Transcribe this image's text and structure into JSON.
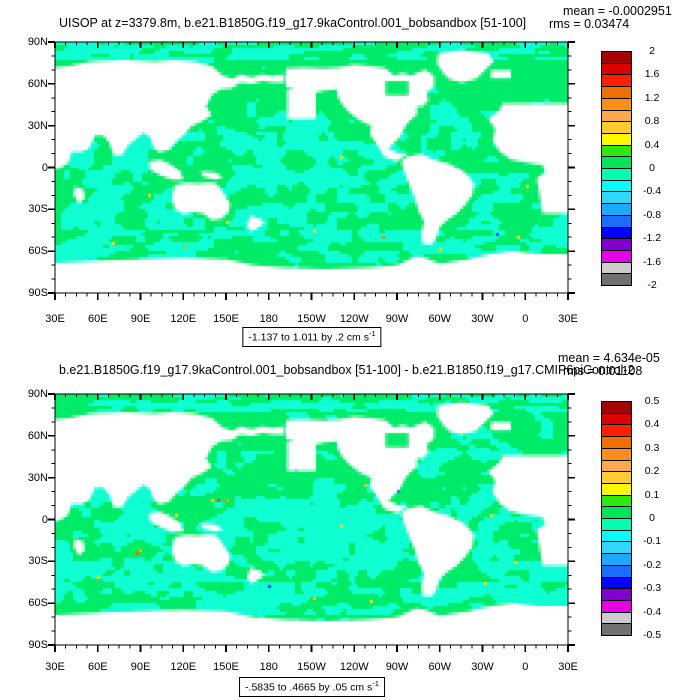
{
  "figure_background": "#ffffff",
  "panels": [
    {
      "title": "UISOP at z=3379.8m, b.e21.B1850G.f19_g17.9kaControl.001_bobsandbox [51-100]",
      "mean_label": "mean = -0.0002951",
      "rms_label": "rms = 0.03474",
      "range_caption_text": "-1.137 to 1.011 by .2 cm s",
      "range_caption_sup": "-1",
      "colorbar_labels": [
        "2",
        "1.6",
        "1.2",
        "0.8",
        "0.4",
        "0",
        "-0.4",
        "-0.8",
        "-1.2",
        "-1.6",
        "-2"
      ]
    },
    {
      "title": "b.e21.B1850G.f19_g17.9kaControl.001_bobsandbox [51-100] - b.e21.B1850.f19_g17.CMIP6piControl-2",
      "mean_label": "mean = 4.634e-05",
      "rms_label": "rms = 0.01108",
      "range_caption_text": "-.5835 to .4665 by .05 cm s",
      "range_caption_sup": "-1",
      "colorbar_labels": [
        "0.5",
        "0.4",
        "0.3",
        "0.2",
        "0.1",
        "0",
        "-0.1",
        "-0.2",
        "-0.3",
        "-0.4",
        "-0.5"
      ]
    }
  ],
  "axes": {
    "lat_labels": [
      "90N",
      "60N",
      "30N",
      "0",
      "30S",
      "60S",
      "90S"
    ],
    "lon_labels": [
      "30E",
      "60E",
      "90E",
      "120E",
      "150E",
      "180",
      "150W",
      "120W",
      "90W",
      "60W",
      "30W",
      "0",
      "30E"
    ]
  },
  "colors": {
    "palette_top_to_bottom": [
      "#A50000",
      "#DD0000",
      "#FF2000",
      "#EE7000",
      "#FF8E1E",
      "#FFA94F",
      "#FFCC33",
      "#FFF800",
      "#2FE80F",
      "#00E35A",
      "#00FFB0",
      "#00FFFF",
      "#33D6FF",
      "#1FA8FF",
      "#1B6EFF",
      "#0000FF",
      "#8000D0",
      "#E600E6",
      "#CCCCCC",
      "#707070"
    ],
    "ocean_fill": "#00EB68",
    "anomaly_fill": "#0FFFD2",
    "land_fill": "#FFFFFF"
  },
  "chart_data": [
    {
      "type": "heatmap",
      "title": "UISOP at z=3379.8m, b.e21.B1850G.f19_g17.9kaControl.001_bobsandbox [51-100]",
      "variable": "UISOP",
      "level": "z=3379.8m",
      "mean": -0.0002951,
      "rms": 0.03474,
      "data_min": -1.137,
      "data_max": 1.011,
      "contour_interval": 0.2,
      "units": "cm s-1",
      "colorbar_ticks": [
        2,
        1.6,
        1.2,
        0.8,
        0.4,
        0,
        -0.4,
        -0.8,
        -1.2,
        -1.6,
        -2
      ],
      "lon_ticks": [
        "30E",
        "60E",
        "90E",
        "120E",
        "150E",
        "180",
        "150W",
        "120W",
        "90W",
        "60W",
        "30W",
        "0",
        "30E"
      ],
      "lat_ticks": [
        "90N",
        "60N",
        "30N",
        "0",
        "30S",
        "60S",
        "90S"
      ]
    },
    {
      "type": "heatmap",
      "title": "b.e21.B1850G.f19_g17.9kaControl.001_bobsandbox [51-100] - b.e21.B1850.f19_g17.CMIP6piControl-2",
      "mean": 4.634e-05,
      "rms": 0.01108,
      "data_min": -0.5835,
      "data_max": 0.4665,
      "contour_interval": 0.05,
      "units": "cm s-1",
      "colorbar_ticks": [
        0.5,
        0.4,
        0.3,
        0.2,
        0.1,
        0,
        -0.1,
        -0.2,
        -0.3,
        -0.4,
        -0.5
      ],
      "lon_ticks": [
        "30E",
        "60E",
        "90E",
        "120E",
        "150E",
        "180",
        "150W",
        "120W",
        "90W",
        "60W",
        "30W",
        "0",
        "30E"
      ],
      "lat_ticks": [
        "90N",
        "60N",
        "30N",
        "0",
        "30S",
        "60S",
        "90S"
      ]
    }
  ]
}
